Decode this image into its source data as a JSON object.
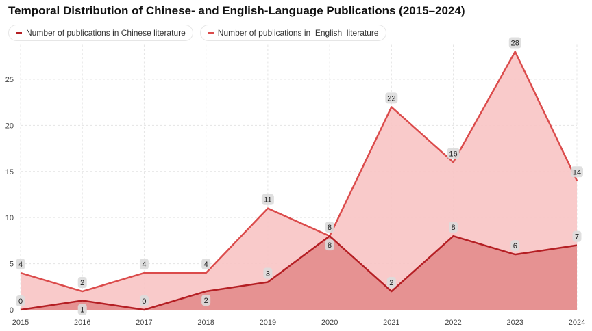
{
  "chart_data": {
    "type": "area",
    "title": "Temporal Distribution of Chinese- and English-Language Publications (2015–2024)",
    "xlabel": "",
    "ylabel": "",
    "categories": [
      "2015",
      "2016",
      "2017",
      "2018",
      "2019",
      "2020",
      "2021",
      "2022",
      "2023",
      "2024"
    ],
    "ylim": [
      0,
      28
    ],
    "yticks": [
      0,
      5,
      10,
      15,
      20,
      25
    ],
    "grid": true,
    "legend_position": "top-left",
    "series": [
      {
        "name": "Number of publications in English literature",
        "legend_label": "Number of publications in  English  literature",
        "color": "#db4b4b",
        "fill": "#f8c4c4",
        "values": [
          4,
          2,
          4,
          4,
          11,
          8,
          22,
          16,
          28,
          14
        ]
      },
      {
        "name": "Number of publications in Chinese literature",
        "legend_label": "Number of publications in Chinese literature",
        "color": "#b51f24",
        "fill": "#e38888",
        "values": [
          0,
          1,
          0,
          2,
          3,
          8,
          2,
          8,
          6,
          7
        ]
      }
    ]
  }
}
